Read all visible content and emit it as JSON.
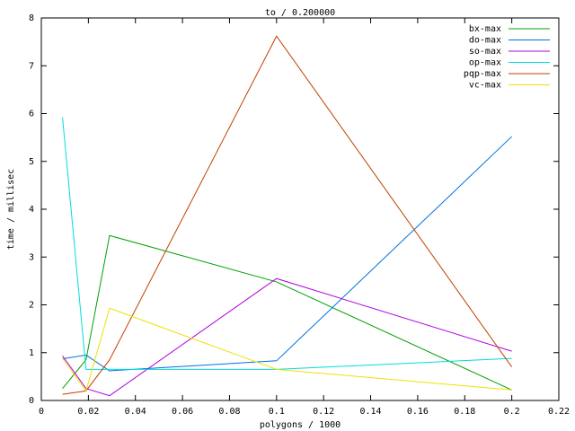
{
  "chart_data": {
    "type": "line",
    "title": "to / 0.200000",
    "x_label": "polygons / 1000",
    "y_label": "time / millisec",
    "x": [
      0.009,
      0.019,
      0.029,
      0.1,
      0.2
    ],
    "series": [
      {
        "name": "bx-max",
        "color": "#00a000",
        "values": [
          0.25,
          0.85,
          3.45,
          2.48,
          0.22
        ]
      },
      {
        "name": "do-max",
        "color": "#0070e0",
        "values": [
          0.87,
          0.95,
          0.62,
          0.83,
          5.52
        ]
      },
      {
        "name": "so-max",
        "color": "#b000e0",
        "values": [
          0.93,
          0.25,
          0.1,
          2.55,
          1.03
        ]
      },
      {
        "name": "op-max",
        "color": "#00dcdc",
        "values": [
          5.92,
          0.65,
          0.65,
          0.65,
          0.88
        ]
      },
      {
        "name": "pqp-max",
        "color": "#c04000",
        "values": [
          0.13,
          0.2,
          0.85,
          7.62,
          0.7
        ]
      },
      {
        "name": "vc-max",
        "color": "#f0e000",
        "values": [
          0.88,
          0.2,
          1.93,
          0.65,
          0.22
        ]
      }
    ],
    "xlim": [
      0,
      0.22
    ],
    "xticks": [
      0,
      0.02,
      0.04,
      0.06,
      0.08,
      0.1,
      0.12,
      0.14,
      0.16,
      0.18,
      0.2,
      0.22
    ],
    "ylim": [
      0,
      8
    ],
    "yticks": [
      0,
      1,
      2,
      3,
      4,
      5,
      6,
      7,
      8
    ],
    "legend": "top-right"
  }
}
